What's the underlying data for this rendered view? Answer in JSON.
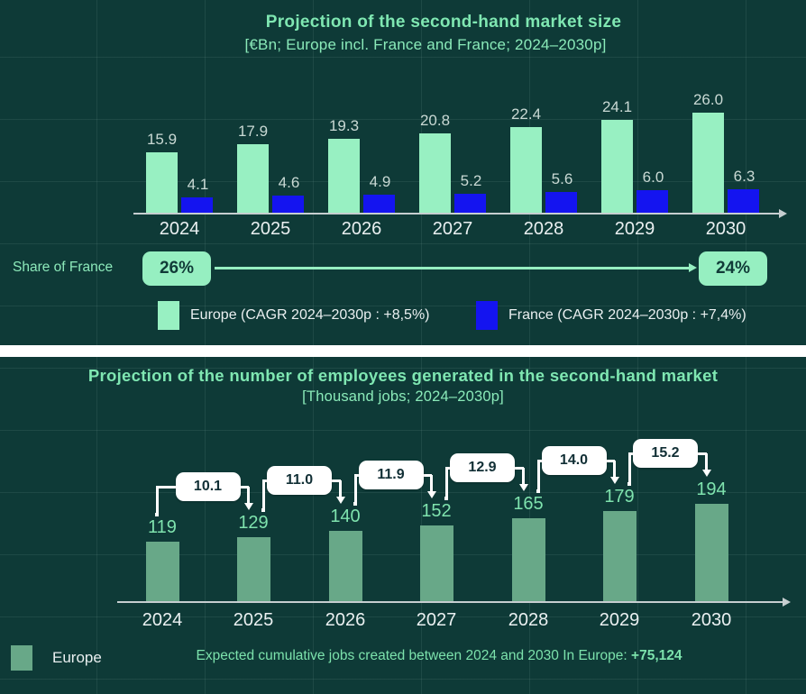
{
  "colors": {
    "background": "#0e3a37",
    "mint_accent": "#96efc1",
    "europe_bar": "#98f0c2",
    "france_bar": "#1414f0",
    "employment_bar": "#68a888",
    "title_mint": "#7fe7b2",
    "white_text": "#eaf0f1",
    "callout_bg": "#ffffff"
  },
  "chart_data": [
    {
      "type": "bar",
      "title": "Projection of the second-hand market size",
      "subtitle": "[€Bn; Europe incl. France and France; 2024–2030p]",
      "categories": [
        "2024",
        "2025",
        "2026",
        "2027",
        "2028",
        "2029",
        "2030"
      ],
      "series": [
        {
          "name": "Europe",
          "color": "#98f0c2",
          "values": [
            15.9,
            17.9,
            19.3,
            20.8,
            22.4,
            24.1,
            26.0
          ],
          "labels": [
            "15.9",
            "17.9",
            "19.3",
            "20.8",
            "22.4",
            "24.1",
            "26.0"
          ],
          "legend": "Europe (CAGR 2024–2030p : +8,5%)"
        },
        {
          "name": "France",
          "color": "#1414f0",
          "values": [
            4.1,
            4.6,
            4.9,
            5.2,
            5.6,
            6.0,
            6.3
          ],
          "labels": [
            "4.1",
            "4.6",
            "4.9",
            "5.2",
            "5.6",
            "6.0",
            "6.3"
          ],
          "legend": "France (CAGR 2024–2030p : +7,4%)"
        }
      ],
      "share": {
        "label": "Share of France",
        "start": "26%",
        "end": "24%"
      },
      "ylim": [
        0,
        30
      ],
      "grid": "subtle",
      "legend_position": "bottom"
    },
    {
      "type": "bar",
      "title": "Projection of the number of employees generated in the second-hand market",
      "subtitle": "[Thousand jobs; 2024–2030p]",
      "categories": [
        "2024",
        "2025",
        "2026",
        "2027",
        "2028",
        "2029",
        "2030"
      ],
      "series": [
        {
          "name": "Europe",
          "color": "#68a888",
          "values": [
            119,
            129,
            140,
            152,
            165,
            179,
            194
          ],
          "labels": [
            "119",
            "129",
            "140",
            "152",
            "165",
            "179",
            "194"
          ],
          "legend": "Europe"
        }
      ],
      "delta_labels": [
        "10.1",
        "11.0",
        "11.9",
        "12.9",
        "14.0",
        "15.2"
      ],
      "footer_text": "Expected cumulative jobs created between 2024 and 2030 In Europe: ",
      "footer_value": "+75,124",
      "ylim": [
        0,
        200
      ],
      "grid": "subtle",
      "legend_position": "bottom-left"
    }
  ]
}
